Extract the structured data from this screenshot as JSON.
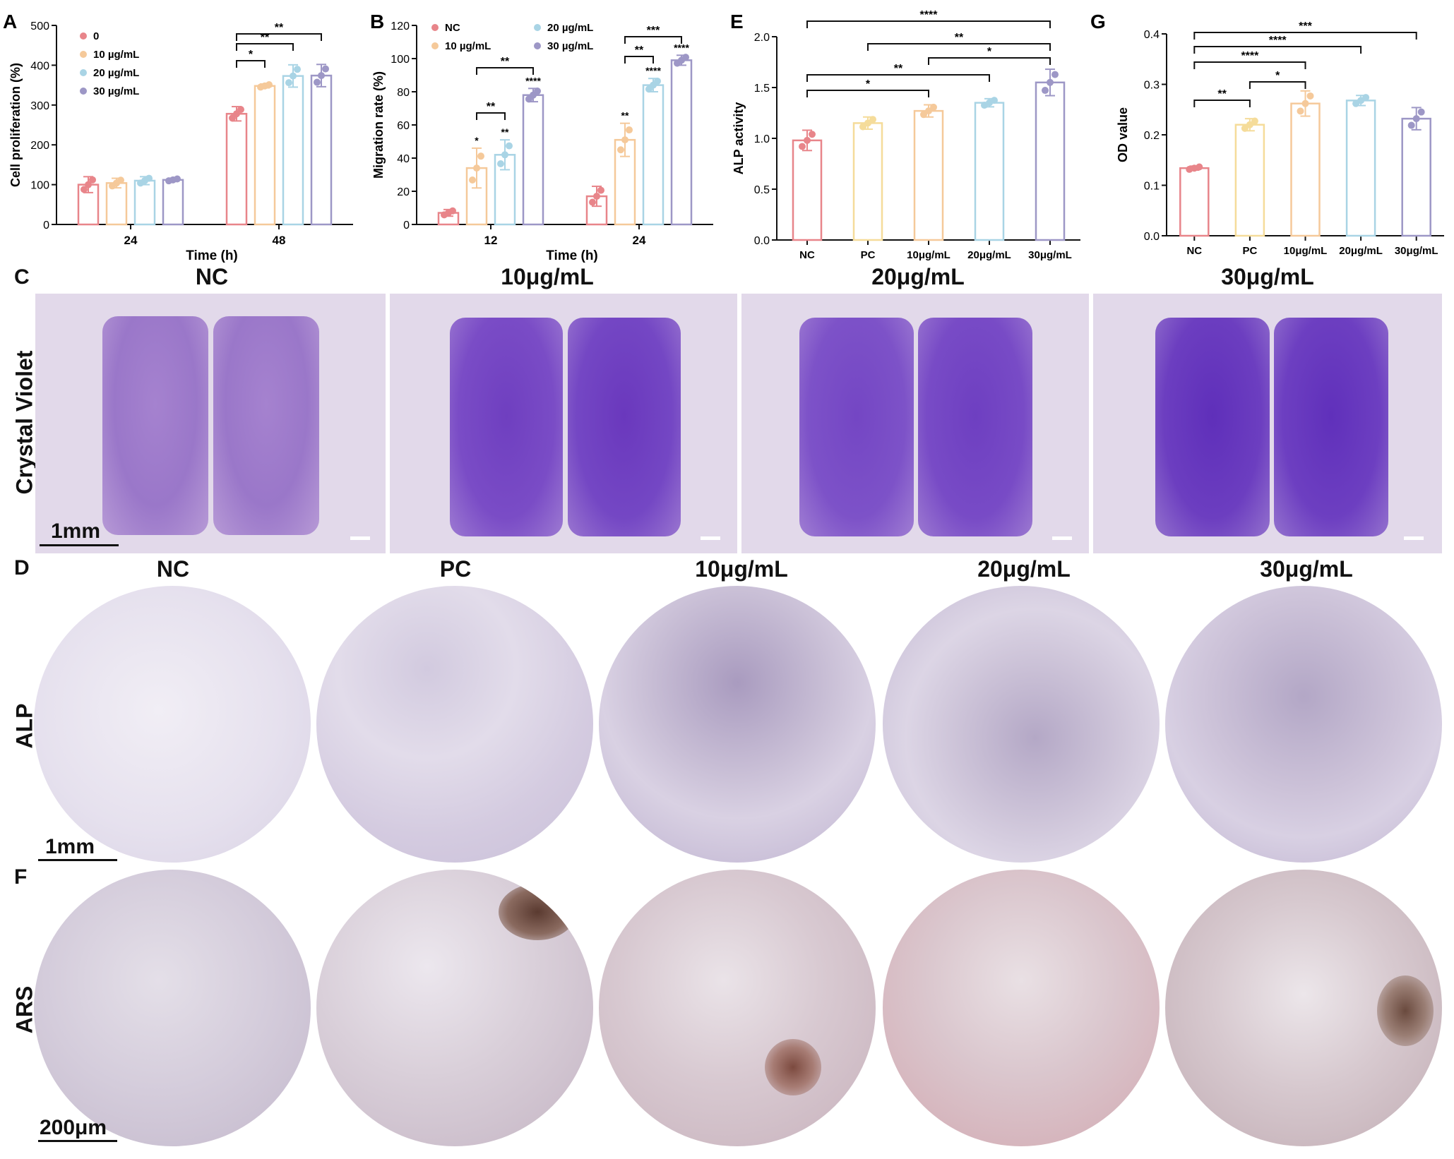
{
  "charts": {
    "A": {
      "panel": "A",
      "ylabel": "Cell proliferation (%)",
      "xlabel": "Time (h)",
      "ylim": [
        0,
        500
      ],
      "yticks": [
        0,
        100,
        200,
        300,
        400,
        500
      ],
      "categories": [
        "24",
        "48"
      ],
      "legend": [
        "0",
        "10 µg/mL",
        "20 µg/mL",
        "30 µg/mL"
      ],
      "colors": [
        "#e8858a",
        "#f5c99a",
        "#a9d4e5",
        "#9d97c6"
      ],
      "sig": [
        "*",
        "**",
        "**"
      ]
    },
    "B": {
      "panel": "B",
      "ylabel": "Migration rate (%)",
      "xlabel": "Time (h)",
      "ylim": [
        0,
        120
      ],
      "yticks": [
        0,
        20,
        40,
        60,
        80,
        100,
        120
      ],
      "categories": [
        "12",
        "24"
      ],
      "legend": [
        "NC",
        "10 µg/mL",
        "20 µg/mL",
        "30 µg/mL"
      ],
      "colors": [
        "#e8858a",
        "#f5c99a",
        "#a9d4e5",
        "#9d97c6"
      ],
      "sig": [
        "**",
        "**",
        "**",
        "***"
      ],
      "bar_sig": [
        "*",
        "**",
        "****",
        "**",
        "****",
        "****"
      ]
    },
    "E": {
      "panel": "E",
      "ylabel": "ALP activity",
      "ylim": [
        0,
        2.0
      ],
      "yticks": [
        "0.0",
        "0.5",
        "1.0",
        "1.5",
        "2.0"
      ],
      "categories": [
        "NC",
        "PC",
        "10μg/mL",
        "20μg/mL",
        "30μg/mL"
      ],
      "colors": [
        "#e8858a",
        "#f5dc9a",
        "#f5c99a",
        "#a9d4e5",
        "#9d97c6"
      ],
      "sig": [
        "****",
        "**",
        "*",
        "**",
        "*"
      ]
    },
    "G": {
      "panel": "G",
      "ylabel": "OD value",
      "ylim": [
        0,
        0.4
      ],
      "yticks": [
        "0.0",
        "0.1",
        "0.2",
        "0.3",
        "0.4"
      ],
      "categories": [
        "NC",
        "PC",
        "10μg/mL",
        "20μg/mL",
        "30μg/mL"
      ],
      "colors": [
        "#e8858a",
        "#f5dc9a",
        "#f5c99a",
        "#a9d4e5",
        "#9d97c6"
      ],
      "sig": [
        "***",
        "****",
        "****",
        "*",
        "**"
      ]
    }
  },
  "chart_data": [
    {
      "type": "bar",
      "panel": "A",
      "ylabel": "Cell proliferation (%)",
      "xlabel": "Time (h)",
      "categories": [
        "24",
        "48"
      ],
      "ylim": [
        0,
        500
      ],
      "series": [
        {
          "name": "0",
          "values": [
            100,
            278
          ],
          "errors": [
            20,
            18
          ]
        },
        {
          "name": "10 µg/mL",
          "values": [
            104,
            348
          ],
          "errors": [
            12,
            5
          ]
        },
        {
          "name": "20 µg/mL",
          "values": [
            110,
            373
          ],
          "errors": [
            10,
            28
          ]
        },
        {
          "name": "30 µg/mL",
          "values": [
            112,
            374
          ],
          "errors": [
            4,
            28
          ]
        }
      ]
    },
    {
      "type": "bar",
      "panel": "B",
      "ylabel": "Migration rate (%)",
      "xlabel": "Time (h)",
      "categories": [
        "12",
        "24"
      ],
      "ylim": [
        0,
        120
      ],
      "series": [
        {
          "name": "NC",
          "values": [
            7,
            17
          ],
          "errors": [
            2,
            6
          ]
        },
        {
          "name": "10 µg/mL",
          "values": [
            34,
            51
          ],
          "errors": [
            12,
            10
          ]
        },
        {
          "name": "20 µg/mL",
          "values": [
            42,
            84
          ],
          "errors": [
            9,
            4
          ]
        },
        {
          "name": "30 µg/mL",
          "values": [
            78,
            99
          ],
          "errors": [
            4,
            3
          ]
        }
      ]
    },
    {
      "type": "bar",
      "panel": "E",
      "ylabel": "ALP activity",
      "categories": [
        "NC",
        "PC",
        "10μg/mL",
        "20μg/mL",
        "30μg/mL"
      ],
      "ylim": [
        0,
        2.0
      ],
      "values": [
        0.98,
        1.15,
        1.27,
        1.35,
        1.55
      ],
      "errors": [
        0.1,
        0.06,
        0.06,
        0.04,
        0.13
      ]
    },
    {
      "type": "bar",
      "panel": "G",
      "ylabel": "OD value",
      "categories": [
        "NC",
        "PC",
        "10μg/mL",
        "20μg/mL",
        "30μg/mL"
      ],
      "ylim": [
        0,
        0.4
      ],
      "values": [
        0.134,
        0.22,
        0.262,
        0.268,
        0.232
      ],
      "errors": [
        0.004,
        0.012,
        0.025,
        0.01,
        0.022
      ]
    }
  ],
  "figure": {
    "panel_C": "C",
    "panel_D": "D",
    "panel_F": "F",
    "crystal_row_label": "Crystal Violet",
    "crystal_heads": [
      "NC",
      "10μg/mL",
      "20μg/mL",
      "30μg/mL"
    ],
    "alp_row_label": "ALP",
    "ars_row_label": "ARS",
    "circle_heads": [
      "NC",
      "PC",
      "10μg/mL",
      "20μg/mL",
      "30μg/mL"
    ],
    "scale_crystal": "1mm",
    "scale_alp": "1mm",
    "scale_ars": "200μm"
  }
}
